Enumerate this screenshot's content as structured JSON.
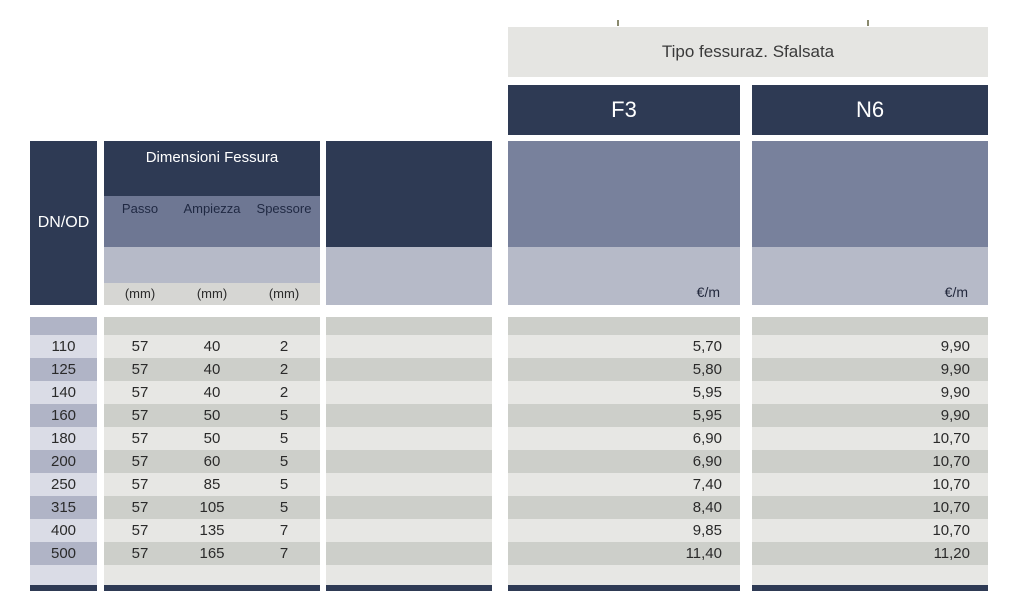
{
  "header": {
    "tipo_label": "Tipo fessuraz. Sfalsata",
    "col_f3": "F3",
    "col_n6": "N6"
  },
  "left_table": {
    "dn_od_label": "DN/OD",
    "group_label": "Dimensioni Fessura",
    "sub_columns": {
      "passo": "Passo",
      "ampiezza": "Ampiezza",
      "spessore": "Spessore"
    },
    "units": {
      "passo": "(mm)",
      "ampiezza": "(mm)",
      "spessore": "(mm)"
    }
  },
  "price_columns": {
    "f3_unit": "€/m",
    "n6_unit": "€/m"
  },
  "rows": [
    {
      "dn": "110",
      "passo": "57",
      "ampiezza": "40",
      "spessore": "2",
      "f3": "5,70",
      "n6": "9,90"
    },
    {
      "dn": "125",
      "passo": "57",
      "ampiezza": "40",
      "spessore": "2",
      "f3": "5,80",
      "n6": "9,90"
    },
    {
      "dn": "140",
      "passo": "57",
      "ampiezza": "40",
      "spessore": "2",
      "f3": "5,95",
      "n6": "9,90"
    },
    {
      "dn": "160",
      "passo": "57",
      "ampiezza": "50",
      "spessore": "5",
      "f3": "5,95",
      "n6": "9,90"
    },
    {
      "dn": "180",
      "passo": "57",
      "ampiezza": "50",
      "spessore": "5",
      "f3": "6,90",
      "n6": "10,70"
    },
    {
      "dn": "200",
      "passo": "57",
      "ampiezza": "60",
      "spessore": "5",
      "f3": "6,90",
      "n6": "10,70"
    },
    {
      "dn": "250",
      "passo": "57",
      "ampiezza": "85",
      "spessore": "5",
      "f3": "7,40",
      "n6": "10,70"
    },
    {
      "dn": "315",
      "passo": "57",
      "ampiezza": "105",
      "spessore": "5",
      "f3": "8,40",
      "n6": "10,70"
    },
    {
      "dn": "400",
      "passo": "57",
      "ampiezza": "135",
      "spessore": "7",
      "f3": "9,85",
      "n6": "10,70"
    },
    {
      "dn": "500",
      "passo": "57",
      "ampiezza": "165",
      "spessore": "7",
      "f3": "11,40",
      "n6": "11,20"
    }
  ],
  "colors": {
    "navy": "#2e3a54",
    "slate_left": "#6e7793",
    "slate_right": "#78819c",
    "lavender_band": "#b6bac8",
    "lavender_row_light": "#dadce6",
    "lavender_row_dark": "#b0b4c6",
    "gray_row_light": "#e7e7e4",
    "gray_row_dark": "#cdcfca",
    "unit_row_gray": "#d6d6d3",
    "tipo_box_gray": "#e5e5e2"
  }
}
